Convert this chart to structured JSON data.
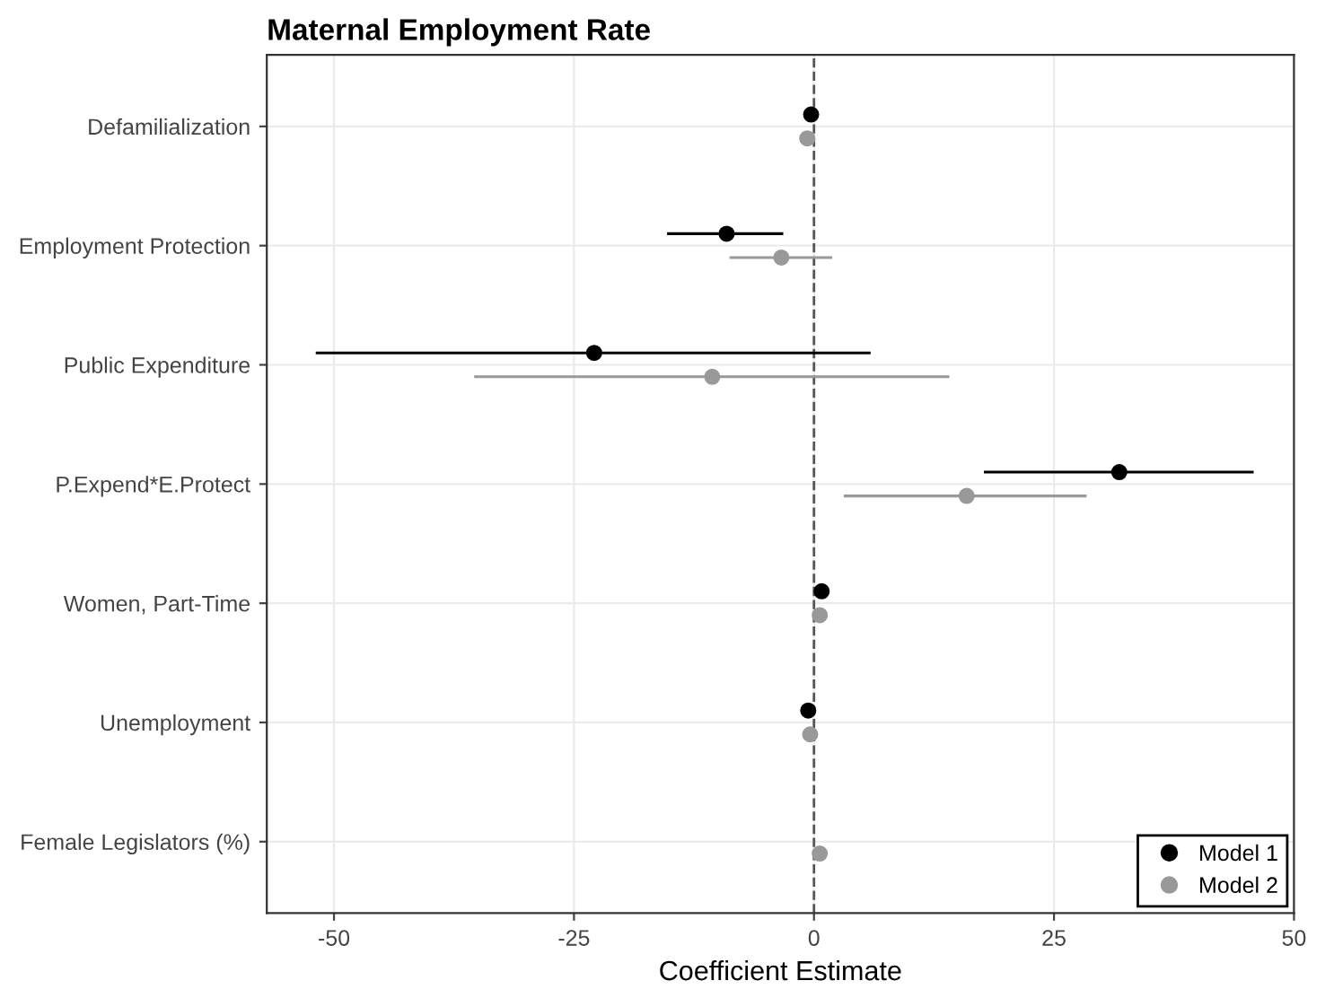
{
  "chart_data": {
    "type": "scatter",
    "orientation": "horizontal",
    "title": "Maternal Employment Rate",
    "xlabel": "Coefficient Estimate",
    "categories": [
      "Defamilialization",
      "Employment Protection",
      "Public Expenditure",
      "P.Expend*E.Protect",
      "Women, Part-Time",
      "Unemployment",
      "Female Legislators (%)"
    ],
    "series": [
      {
        "name": "Model 1",
        "color": "#000000",
        "values": [
          -0.3,
          -9.1,
          -22.9,
          31.8,
          0.8,
          -0.6,
          null
        ],
        "errors": [
          null,
          [
            -15.3,
            -3.2
          ],
          [
            -51.9,
            5.9
          ],
          [
            17.7,
            45.8
          ],
          null,
          null,
          null
        ]
      },
      {
        "name": "Model 2",
        "color": "#999999",
        "values": [
          -0.7,
          -3.4,
          -10.6,
          15.9,
          0.6,
          -0.4,
          0.6
        ],
        "errors": [
          null,
          [
            -8.8,
            1.9
          ],
          [
            -35.4,
            14.1
          ],
          [
            3.1,
            28.4
          ],
          null,
          null,
          null
        ]
      }
    ],
    "xlim": [
      -57,
      50
    ],
    "xticks": [
      -50,
      -25,
      0,
      25,
      50
    ],
    "ref_lines": [
      {
        "axis": "x",
        "value": 0,
        "line_style": "dashed",
        "color": "#555555"
      }
    ],
    "grid": true,
    "legend": "bottom right",
    "marker": "circle"
  }
}
